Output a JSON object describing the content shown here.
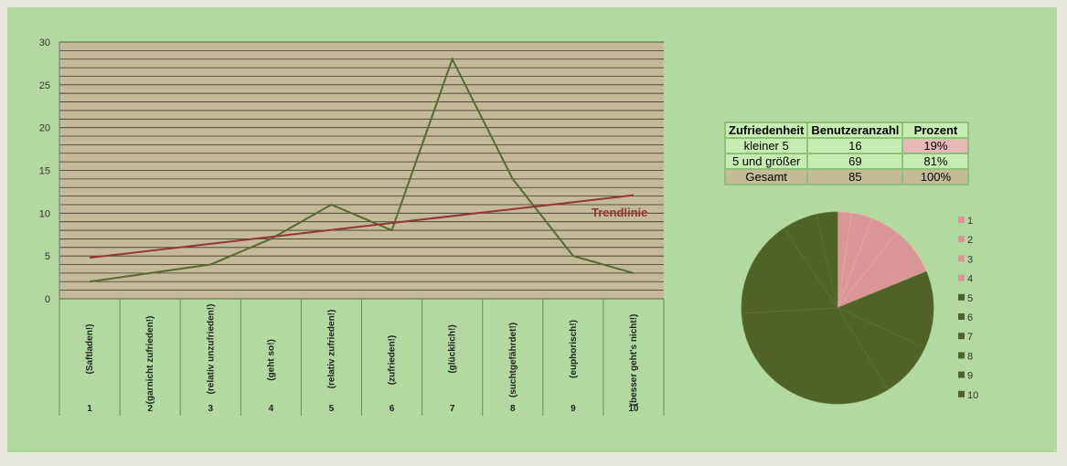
{
  "chart_data": [
    {
      "type": "line",
      "categories": [
        "1",
        "2",
        "3",
        "4",
        "5",
        "6",
        "7",
        "8",
        "9",
        "10"
      ],
      "category_labels": [
        "(Saftladen!)",
        "(garnicht zufrieden!)",
        "(relativ unzufrieden!)",
        "(geht so!)",
        "(relativ zufrieden!)",
        "(zufrieden!)",
        "(glücklich!)",
        "(suchtgefährdet!)",
        "(euphorisch!)",
        "(besser geht's nicht!)"
      ],
      "values": [
        2,
        3,
        4,
        7,
        11,
        8,
        28,
        14,
        5,
        3
      ],
      "trendline": {
        "label": "Trendlinie",
        "start": 4.8,
        "end": 12.1
      },
      "ylim": [
        0,
        30
      ],
      "yticks": [
        0,
        5,
        10,
        15,
        20,
        25,
        30
      ],
      "grid": true,
      "colors": {
        "line": "#556b2f",
        "trend": "#943634",
        "plot_bg": "#c4b998"
      }
    },
    {
      "type": "pie",
      "labels": [
        "1",
        "2",
        "3",
        "4",
        "5",
        "6",
        "7",
        "8",
        "9",
        "10"
      ],
      "values": [
        2,
        3,
        4,
        7,
        11,
        8,
        28,
        14,
        5,
        3
      ],
      "colors": [
        "#d99694",
        "#d99694",
        "#d99694",
        "#d99694",
        "#4f6228",
        "#4f6228",
        "#4f6228",
        "#4f6228",
        "#4f6228",
        "#4f6228"
      ],
      "legend": "right"
    }
  ],
  "table": {
    "headers": [
      "Zufriedenheit",
      "Benutzeranzahl",
      "Prozent"
    ],
    "rows": [
      [
        "kleiner 5",
        "16",
        "19%"
      ],
      [
        "5 und größer",
        "69",
        "81%"
      ],
      [
        "Gesamt",
        "85",
        "100%"
      ]
    ]
  }
}
